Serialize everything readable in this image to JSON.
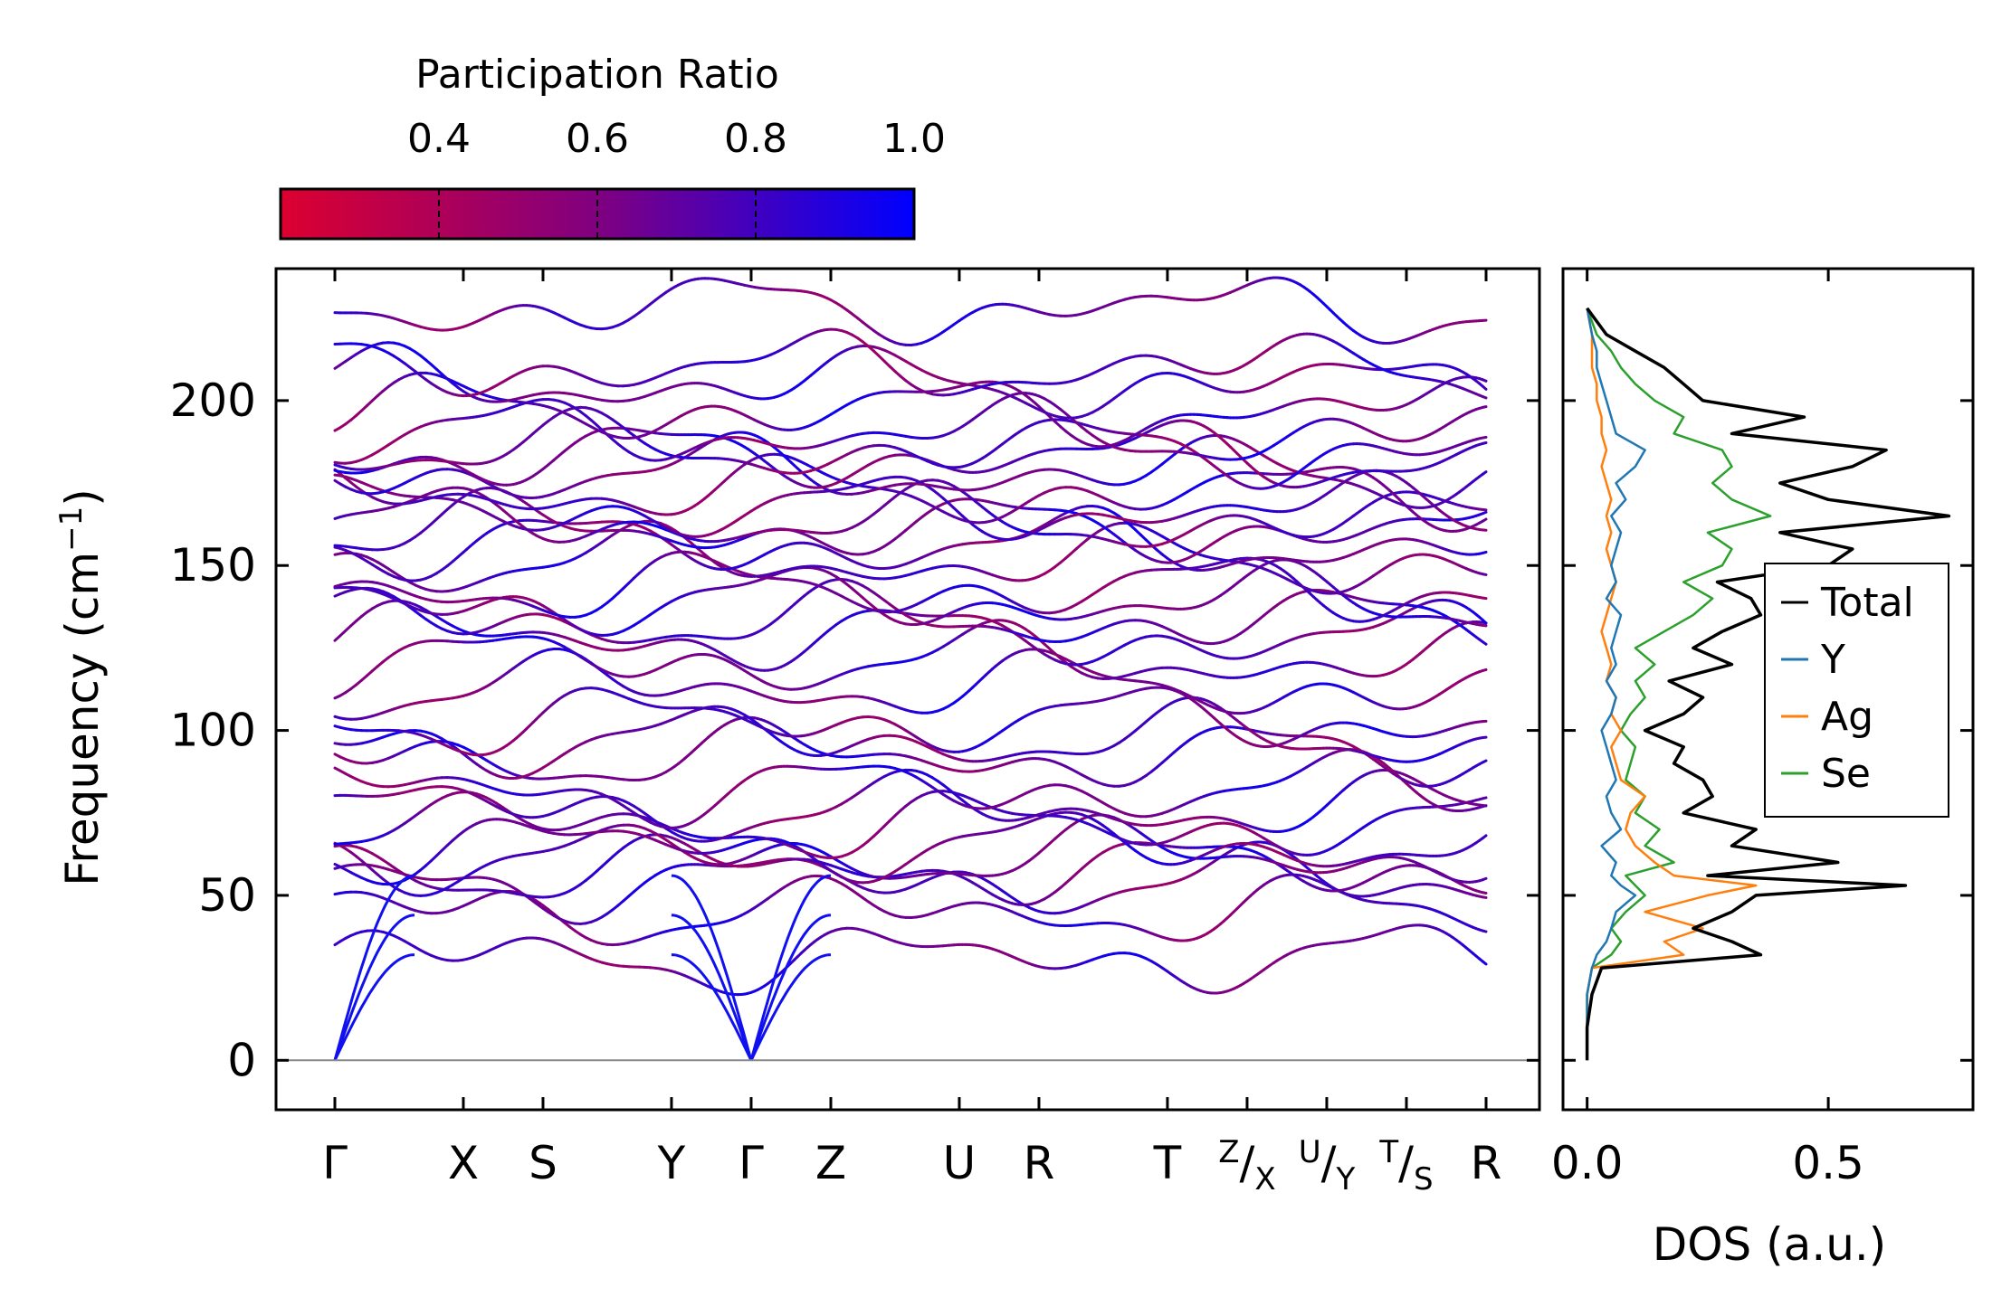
{
  "chart_data": [
    {
      "type": "line",
      "kind": "phonon-band-structure",
      "ylabel": "Frequency (cm",
      "ylabel_sup": "−1",
      "ylabel_end": ")",
      "ylim": [
        -15,
        240
      ],
      "yticks": [
        0,
        50,
        100,
        150,
        200
      ],
      "kpath": [
        {
          "label": "Γ",
          "pos": 0
        },
        {
          "label": "X",
          "pos": 1
        },
        {
          "label": "S",
          "pos": 1.62
        },
        {
          "label": "Y",
          "pos": 2.62
        },
        {
          "label": "Γ",
          "pos": 3.24
        },
        {
          "label": "Z",
          "pos": 3.86
        },
        {
          "label": "U",
          "pos": 4.86
        },
        {
          "label": "R",
          "pos": 5.48
        },
        {
          "label": "T",
          "pos": 6.48
        },
        {
          "label": "Z|X",
          "pos": 7.1,
          "top": "Z",
          "bottom": "X"
        },
        {
          "label": "U|Y",
          "pos": 7.72,
          "top": "U",
          "bottom": "Y"
        },
        {
          "label": "T|S",
          "pos": 8.34,
          "top": "T",
          "bottom": "S"
        },
        {
          "label": "R",
          "pos": 8.96
        }
      ],
      "colorbar": {
        "label": "Participation Ratio",
        "range": [
          0.2,
          1.0
        ],
        "ticks": [
          0.4,
          0.6,
          0.8,
          1.0
        ],
        "tick_labels": [
          "0.4",
          "0.6",
          "0.8",
          "1.0"
        ],
        "color_low": "#dc0030",
        "color_mid": "#800080",
        "color_high": "#0000ff"
      },
      "acoustic_bands": [
        {
          "start": 0,
          "end": 32
        },
        {
          "start": 0,
          "end": 44
        },
        {
          "start": 0,
          "end": 56
        }
      ],
      "optical_bands_gamma": [
        31,
        45,
        54,
        58,
        62,
        65,
        71,
        76,
        82,
        92,
        97,
        103,
        113,
        121,
        128,
        133,
        139,
        143,
        151,
        156,
        161,
        163,
        167,
        172,
        178,
        183,
        185,
        190,
        197,
        205,
        210,
        228
      ]
    },
    {
      "type": "line",
      "kind": "density-of-states",
      "xlabel": "DOS (a.u.)",
      "xlim": [
        -0.05,
        0.8
      ],
      "xticks": [
        0.0,
        0.5
      ],
      "xtick_labels": [
        "0.0",
        "0.5"
      ],
      "ylim": [
        -15,
        240
      ],
      "freq": [
        0,
        10,
        20,
        28,
        32,
        36,
        40,
        45,
        50,
        53,
        56,
        60,
        65,
        70,
        75,
        80,
        85,
        90,
        95,
        100,
        105,
        110,
        115,
        120,
        125,
        130,
        135,
        140,
        145,
        150,
        155,
        160,
        165,
        170,
        175,
        180,
        185,
        190,
        195,
        200,
        205,
        210,
        215,
        220,
        228
      ],
      "series": [
        {
          "name": "Total",
          "color": "#000000",
          "values": [
            0,
            0,
            0.01,
            0.03,
            0.36,
            0.3,
            0.22,
            0.3,
            0.35,
            0.66,
            0.25,
            0.52,
            0.3,
            0.35,
            0.2,
            0.26,
            0.24,
            0.18,
            0.2,
            0.12,
            0.2,
            0.24,
            0.17,
            0.3,
            0.22,
            0.28,
            0.36,
            0.34,
            0.27,
            0.5,
            0.55,
            0.4,
            0.75,
            0.5,
            0.4,
            0.55,
            0.62,
            0.3,
            0.45,
            0.24,
            0.2,
            0.16,
            0.1,
            0.04,
            0
          ]
        },
        {
          "name": "Y",
          "color": "#1f77b4",
          "values": [
            0,
            0,
            0,
            0.01,
            0.02,
            0.04,
            0.05,
            0.06,
            0.1,
            0.07,
            0.05,
            0.06,
            0.03,
            0.07,
            0.05,
            0.04,
            0.06,
            0.05,
            0.04,
            0.03,
            0.05,
            0.06,
            0.04,
            0.06,
            0.05,
            0.06,
            0.07,
            0.04,
            0.06,
            0.05,
            0.06,
            0.07,
            0.05,
            0.08,
            0.06,
            0.1,
            0.12,
            0.06,
            0.05,
            0.04,
            0.03,
            0.02,
            0.02,
            0.01,
            0
          ]
        },
        {
          "name": "Ag",
          "color": "#ff7f0e",
          "values": [
            0,
            0,
            0,
            0.01,
            0.2,
            0.16,
            0.24,
            0.12,
            0.25,
            0.35,
            0.18,
            0.14,
            0.1,
            0.08,
            0.09,
            0.12,
            0.07,
            0.06,
            0.05,
            0.07,
            0.05,
            0.06,
            0.04,
            0.05,
            0.04,
            0.03,
            0.04,
            0.05,
            0.06,
            0.05,
            0.04,
            0.05,
            0.04,
            0.05,
            0.04,
            0.03,
            0.04,
            0.03,
            0.03,
            0.02,
            0.02,
            0.01,
            0.01,
            0.01,
            0
          ]
        },
        {
          "name": "Se",
          "color": "#2ca02c",
          "values": [
            0,
            0,
            0,
            0.01,
            0.05,
            0.07,
            0.05,
            0.08,
            0.12,
            0.1,
            0.08,
            0.18,
            0.12,
            0.15,
            0.1,
            0.12,
            0.08,
            0.09,
            0.1,
            0.07,
            0.09,
            0.12,
            0.1,
            0.14,
            0.1,
            0.16,
            0.22,
            0.26,
            0.2,
            0.28,
            0.3,
            0.25,
            0.38,
            0.3,
            0.26,
            0.3,
            0.28,
            0.18,
            0.2,
            0.14,
            0.1,
            0.07,
            0.05,
            0.02,
            0
          ]
        }
      ],
      "legend_position": "center-right"
    }
  ]
}
